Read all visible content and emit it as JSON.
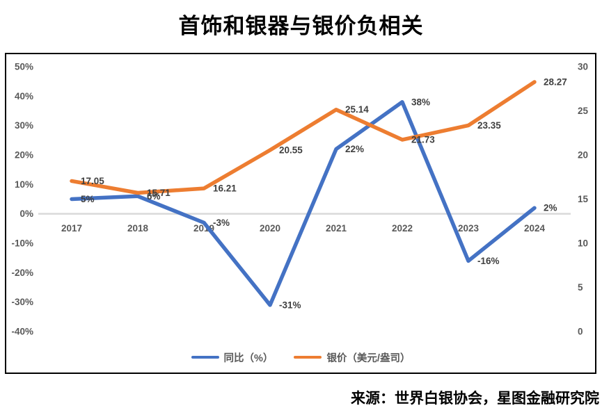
{
  "title": "首饰和银器与银价负相关",
  "source": "来源：世界白银协会，星图金融研究院",
  "chart_data": {
    "type": "line",
    "categories": [
      "2017",
      "2018",
      "2019",
      "2020",
      "2021",
      "2022",
      "2023",
      "2024"
    ],
    "series": [
      {
        "name": "同比（%）",
        "axis": "left",
        "color": "#4472C4",
        "values": [
          5,
          6,
          -3,
          -31,
          22,
          38,
          -16,
          2
        ],
        "labels": [
          "5%",
          "6%",
          "-3%",
          "-31%",
          "22%",
          "38%",
          "-16%",
          "2%"
        ]
      },
      {
        "name": "银价（美元/盎司）",
        "axis": "right",
        "color": "#ED7D31",
        "values": [
          17.05,
          15.71,
          16.21,
          20.55,
          25.14,
          21.73,
          23.35,
          28.27
        ],
        "labels": [
          "17.05",
          "15.71",
          "16.21",
          "20.55",
          "25.14",
          "21.73",
          "23.35",
          "28.27"
        ]
      }
    ],
    "left_axis": {
      "min": -40,
      "max": 50,
      "step": 10,
      "tick_labels": [
        "50%",
        "40%",
        "30%",
        "20%",
        "10%",
        "0%",
        "-10%",
        "-20%",
        "-30%",
        "-40%"
      ]
    },
    "right_axis": {
      "min": 0,
      "max": 30,
      "step": 5,
      "tick_labels": [
        "30",
        "25",
        "20",
        "15",
        "10",
        "5",
        "0"
      ]
    },
    "zero_line_color": "#D9D9D9",
    "data_label_color": "#404040",
    "tick_label_color": "#595959",
    "grid": "off",
    "legend_position": "bottom"
  }
}
